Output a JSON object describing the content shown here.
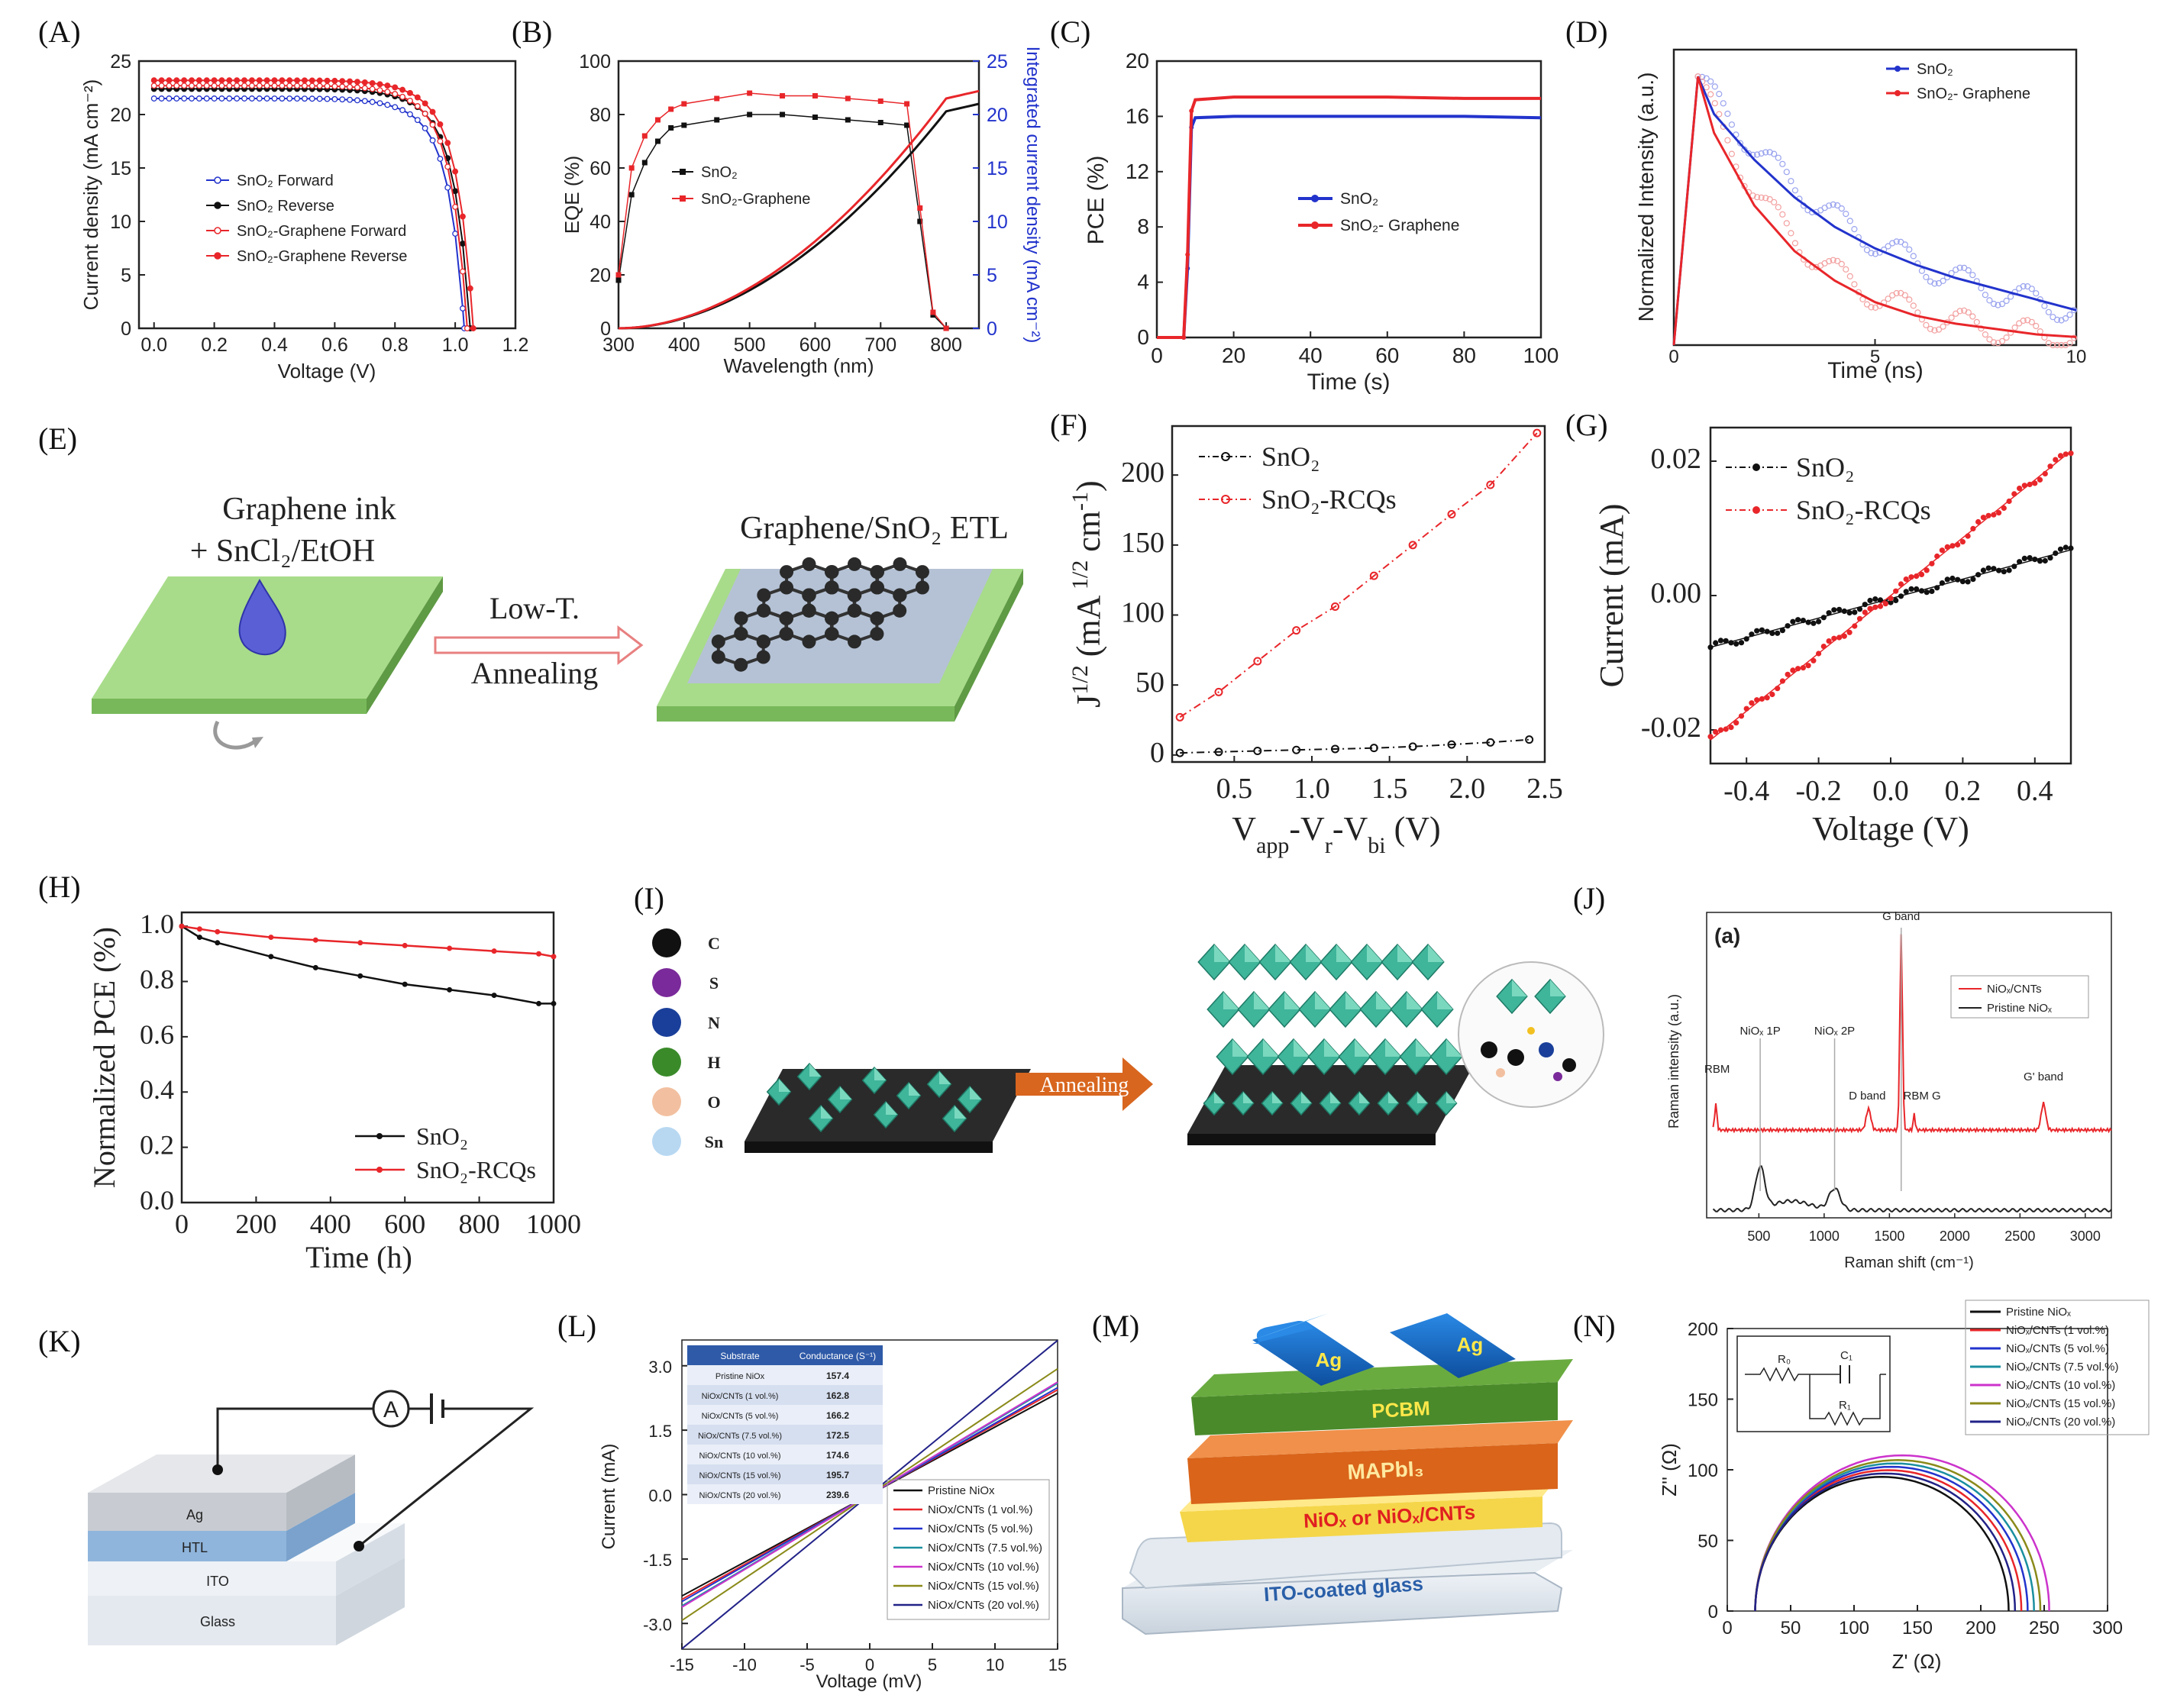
{
  "panel_labels": [
    "(A)",
    "(B)",
    "(C)",
    "(D)",
    "(E)",
    "(F)",
    "(G)",
    "(H)",
    "(I)",
    "(J)",
    "(K)",
    "(L)",
    "(M)",
    "(N)"
  ],
  "colors": {
    "sno2": "#111111",
    "graphene": "#e8262a",
    "blue": "#2233cc",
    "green": "#8ed47a",
    "pink": "#e8a0a0"
  },
  "chart_data": [
    {
      "panel": "A",
      "type": "line",
      "xlabel": "Voltage (V)",
      "ylabel": "Current density (mA cm⁻²)",
      "xlim": [
        -0.05,
        1.2
      ],
      "ylim": [
        0,
        25
      ],
      "xticks": [
        "0.0",
        "0.2",
        "0.4",
        "0.6",
        "0.8",
        "1.0",
        "1.2"
      ],
      "yticks": [
        "0",
        "5",
        "10",
        "15",
        "20",
        "25"
      ],
      "series": [
        {
          "name": "SnO₂ Forward",
          "jsc": 21.5,
          "voc": 1.03,
          "color": "#2233cc",
          "marker": "open-circle"
        },
        {
          "name": "SnO₂ Reverse",
          "jsc": 22.4,
          "voc": 1.05,
          "color": "#111111",
          "marker": "filled-circle"
        },
        {
          "name": "SnO₂-Graphene Forward",
          "jsc": 22.7,
          "voc": 1.04,
          "color": "#e8262a",
          "marker": "open-circle"
        },
        {
          "name": "SnO₂-Graphene Reverse",
          "jsc": 23.2,
          "voc": 1.06,
          "color": "#e8262a",
          "marker": "filled-circle"
        }
      ],
      "legend_placement": "center-left"
    },
    {
      "panel": "B",
      "type": "line",
      "xlabel": "Wavelength (nm)",
      "ylabel": "EQE (%)",
      "y2label": "Integrated current density (mA cm⁻²)",
      "xlim": [
        300,
        850
      ],
      "ylim": [
        0,
        100
      ],
      "y2lim": [
        0,
        25
      ],
      "xticks": [
        "300",
        "400",
        "500",
        "600",
        "700",
        "800"
      ],
      "yticks": [
        "0",
        "20",
        "40",
        "60",
        "80",
        "100"
      ],
      "y2ticks": [
        "0",
        "5",
        "10",
        "15",
        "20",
        "25"
      ],
      "series": [
        {
          "name": "SnO₂",
          "x": [
            300,
            320,
            340,
            360,
            380,
            400,
            450,
            500,
            550,
            600,
            650,
            700,
            740,
            760,
            780,
            800
          ],
          "values": [
            18,
            50,
            62,
            70,
            75,
            76,
            78,
            80,
            80,
            79,
            78,
            77,
            76,
            40,
            5,
            0
          ]
        },
        {
          "name": "SnO₂-Graphene",
          "x": [
            300,
            320,
            340,
            360,
            380,
            400,
            450,
            500,
            550,
            600,
            650,
            700,
            740,
            760,
            780,
            800
          ],
          "values": [
            20,
            60,
            72,
            78,
            82,
            84,
            86,
            88,
            87,
            87,
            86,
            85,
            84,
            45,
            6,
            0
          ]
        }
      ],
      "integrated": [
        {
          "name": "SnO₂",
          "x": [
            300,
            400,
            500,
            600,
            700,
            800,
            850
          ],
          "values": [
            0,
            0.8,
            4.5,
            9.6,
            15.1,
            20.3,
            21.0
          ]
        },
        {
          "name": "SnO₂-Graphene",
          "x": [
            300,
            400,
            500,
            600,
            700,
            800,
            850
          ],
          "values": [
            0,
            0.9,
            5.0,
            10.4,
            16.2,
            21.5,
            22.2
          ]
        }
      ],
      "legend_placement": "center-left"
    },
    {
      "panel": "C",
      "type": "line",
      "xlabel": "Time (s)",
      "ylabel": "PCE (%)",
      "xlim": [
        0,
        100
      ],
      "ylim": [
        0,
        20
      ],
      "xticks": [
        "0",
        "20",
        "40",
        "60",
        "80",
        "100"
      ],
      "yticks": [
        "0",
        "4",
        "8",
        "12",
        "16",
        "20"
      ],
      "series": [
        {
          "name": "SnO₂",
          "x": [
            0,
            7,
            8,
            9,
            10,
            20,
            40,
            60,
            80,
            100
          ],
          "values": [
            0,
            0,
            5,
            15.2,
            15.9,
            16.0,
            16.0,
            16.0,
            16.0,
            15.9
          ]
        },
        {
          "name": "SnO₂- Graphene",
          "x": [
            0,
            7,
            8,
            9,
            10,
            20,
            40,
            60,
            80,
            100
          ],
          "values": [
            0,
            0,
            6,
            16.4,
            17.2,
            17.4,
            17.4,
            17.4,
            17.3,
            17.3
          ]
        }
      ],
      "legend_placement": "center-right"
    },
    {
      "panel": "D",
      "type": "line",
      "xlabel": "Time (ns)",
      "ylabel": "Normalized Intensity (a.u.)",
      "xlim": [
        0,
        10
      ],
      "ylim": [
        0,
        1.1
      ],
      "xticks": [
        "0",
        "5",
        "10"
      ],
      "series": [
        {
          "name": "SnO₂",
          "x": [
            0,
            0.3,
            0.6,
            1,
            2,
            3,
            4,
            5,
            6,
            7,
            8,
            9,
            10
          ],
          "values": [
            0,
            0.5,
            1.0,
            0.86,
            0.69,
            0.55,
            0.44,
            0.36,
            0.3,
            0.25,
            0.21,
            0.17,
            0.13
          ]
        },
        {
          "name": "SnO₂- Graphene",
          "x": [
            0,
            0.3,
            0.6,
            1,
            2,
            3,
            4,
            5,
            6,
            7,
            8,
            9,
            10
          ],
          "values": [
            0,
            0.5,
            1.0,
            0.79,
            0.52,
            0.35,
            0.24,
            0.16,
            0.11,
            0.08,
            0.06,
            0.04,
            0.03
          ]
        }
      ],
      "legend_placement": "top-right"
    },
    {
      "panel": "F",
      "type": "line",
      "xlabel": "Vapp-Vr-Vbi (V)",
      "ylabel": "J1/2 (mA1/2 cm-1)",
      "xlim": [
        0.1,
        2.5
      ],
      "ylim": [
        -5,
        235
      ],
      "xticks": [
        "0.5",
        "1.0",
        "1.5",
        "2.0",
        "2.5"
      ],
      "yticks": [
        "0",
        "50",
        "100",
        "150",
        "200"
      ],
      "series": [
        {
          "name": "SnO₂",
          "x": [
            0.15,
            0.4,
            0.65,
            0.9,
            1.15,
            1.4,
            1.65,
            1.9,
            2.15,
            2.4
          ],
          "values": [
            1.5,
            2.2,
            2.9,
            3.6,
            4.3,
            5.0,
            6.0,
            7.5,
            9,
            11
          ]
        },
        {
          "name": "SnO₂-RCQs",
          "x": [
            0.15,
            0.4,
            0.65,
            0.9,
            1.15,
            1.4,
            1.65,
            1.9,
            2.15,
            2.45
          ],
          "values": [
            27,
            45,
            67,
            89,
            106,
            128,
            150,
            172,
            193,
            230
          ]
        }
      ],
      "legend_placement": "top-left"
    },
    {
      "panel": "G",
      "type": "scatter",
      "xlabel": "Voltage (V)",
      "ylabel": "Current (mA)",
      "xlim": [
        -0.5,
        0.5
      ],
      "ylim": [
        -0.025,
        0.025
      ],
      "xticks": [
        "-0.4",
        "-0.2",
        "0.0",
        "0.2",
        "0.4"
      ],
      "yticks": [
        "-0.02",
        "0.00",
        "0.02"
      ],
      "series": [
        {
          "name": "SnO₂",
          "x": [
            -0.5,
            0.5
          ],
          "values": [
            -0.0077,
            0.0068
          ]
        },
        {
          "name": "SnO₂-RCQs",
          "x": [
            -0.5,
            0.5
          ],
          "values": [
            -0.0215,
            0.0215
          ]
        }
      ],
      "legend_placement": "top-left"
    },
    {
      "panel": "H",
      "type": "line",
      "xlabel": "Time (h)",
      "ylabel": "Normalized PCE (%)",
      "xlim": [
        0,
        1000
      ],
      "ylim": [
        0,
        1.05
      ],
      "xticks": [
        "0",
        "200",
        "400",
        "600",
        "800",
        "1000"
      ],
      "yticks": [
        "0.0",
        "0.2",
        "0.4",
        "0.6",
        "0.8",
        "1.0"
      ],
      "series": [
        {
          "name": "SnO₂",
          "x": [
            0,
            48,
            96,
            240,
            360,
            480,
            600,
            720,
            840,
            960,
            1000
          ],
          "values": [
            1.0,
            0.96,
            0.94,
            0.89,
            0.85,
            0.82,
            0.79,
            0.77,
            0.75,
            0.72,
            0.72
          ]
        },
        {
          "name": "SnO₂-RCQs",
          "x": [
            0,
            48,
            96,
            240,
            360,
            480,
            600,
            720,
            840,
            960,
            1000
          ],
          "values": [
            1.0,
            0.99,
            0.98,
            0.96,
            0.95,
            0.94,
            0.93,
            0.92,
            0.91,
            0.9,
            0.89
          ]
        }
      ],
      "legend_placement": "bottom-right"
    },
    {
      "panel": "J",
      "type": "line",
      "panel_tag": "(a)",
      "xlabel": "Raman shift (cm⁻¹)",
      "ylabel": "Raman intensity (a.u.)",
      "xlim": [
        100,
        3200
      ],
      "xticks": [
        "500",
        "1000",
        "1500",
        "2000",
        "2500",
        "3000"
      ],
      "series": [
        {
          "name": "NiOₓ/CNTs"
        },
        {
          "name": "Pristine NiOₓ"
        }
      ],
      "annotations": [
        "G band",
        "NiOₓ 1P",
        "NiOₓ 2P",
        "RBM",
        "D band",
        "RBM G",
        "G' band"
      ],
      "legend_placement": "top-right"
    },
    {
      "panel": "L",
      "type": "line",
      "xlabel": "Voltage (mV)",
      "ylabel": "Current (mA)",
      "xlim": [
        -15,
        15
      ],
      "ylim": [
        -3.6,
        3.6
      ],
      "xticks": [
        "-15",
        "-10",
        "-5",
        "0",
        "5",
        "10",
        "15"
      ],
      "yticks": [
        "-3.0",
        "-1.5",
        "0.0",
        "1.5",
        "3.0"
      ],
      "series": [
        {
          "name": "Pristine NiOx",
          "values": [
            -2.36,
            2.36
          ],
          "color": "#111111"
        },
        {
          "name": "NiOx/CNTs (1 vol.%)",
          "values": [
            -2.44,
            2.44
          ],
          "color": "#e8262a"
        },
        {
          "name": "NiOx/CNTs (5 vol.%)",
          "values": [
            -2.49,
            2.49
          ],
          "color": "#2233cc"
        },
        {
          "name": "NiOx/CNTs (7.5 vol.%)",
          "values": [
            -2.59,
            2.59
          ],
          "color": "#1a8fa0"
        },
        {
          "name": "NiOx/CNTs (10 vol.%)",
          "values": [
            -2.62,
            2.62
          ],
          "color": "#cc33cc"
        },
        {
          "name": "NiOx/CNTs (15 vol.%)",
          "values": [
            -2.93,
            2.93
          ],
          "color": "#8a8a1a"
        },
        {
          "name": "NiOx/CNTs (20 vol.%)",
          "values": [
            -3.59,
            3.59
          ],
          "color": "#222288"
        }
      ],
      "table": {
        "headers": [
          "Substrate",
          "Conductance (S⁻¹)"
        ],
        "rows": [
          [
            "Pristine NiOx",
            "157.4"
          ],
          [
            "NiOx/CNTs (1 vol.%)",
            "162.8"
          ],
          [
            "NiOx/CNTs (5 vol.%)",
            "166.2"
          ],
          [
            "NiOx/CNTs (7.5 vol.%)",
            "172.5"
          ],
          [
            "NiOx/CNTs (10 vol.%)",
            "174.6"
          ],
          [
            "NiOx/CNTs (15 vol.%)",
            "195.7"
          ],
          [
            "NiOx/CNTs (20 vol.%)",
            "239.6"
          ]
        ]
      },
      "legend_placement": "bottom-right"
    },
    {
      "panel": "N",
      "type": "line",
      "xlabel": "Z' (Ω)",
      "ylabel": "Z'' (Ω)",
      "xlim": [
        0,
        300
      ],
      "ylim": [
        0,
        200
      ],
      "xticks": [
        "0",
        "50",
        "100",
        "150",
        "200",
        "250",
        "300"
      ],
      "yticks": [
        "0",
        "50",
        "100",
        "150",
        "200"
      ],
      "series": [
        {
          "name": "Pristine NiOₓ",
          "r0": 22,
          "r1": 200,
          "color": "#111111"
        },
        {
          "name": "NiOₓ/CNTs (1 vol.%)",
          "r0": 22,
          "r1": 210,
          "color": "#e8262a"
        },
        {
          "name": "NiOₓ/CNTs (5 vol.%)",
          "r0": 22,
          "r1": 215,
          "color": "#2233cc"
        },
        {
          "name": "NiOₓ/CNTs (7.5 vol.%)",
          "r0": 22,
          "r1": 220,
          "color": "#1a8fa0"
        },
        {
          "name": "NiOₓ/CNTs (10 vol.%)",
          "r0": 22,
          "r1": 232,
          "color": "#cc33cc"
        },
        {
          "name": "NiOₓ/CNTs (15 vol.%)",
          "r0": 22,
          "r1": 225,
          "color": "#8a8a1a"
        },
        {
          "name": "NiOₓ/CNTs (20 vol.%)",
          "r0": 22,
          "r1": 205,
          "color": "#222288"
        }
      ],
      "inset_labels": [
        "R₀",
        "C₁",
        "R₁"
      ],
      "legend_placement": "top-right"
    }
  ],
  "schematic_E": {
    "ink_label_1": "Graphene  ink",
    "ink_label_2": "+ SnCl₂/EtOH",
    "arrow_top": "Low-T.",
    "arrow_bottom": "Annealing",
    "product_label": "Graphene/SnO₂ ETL"
  },
  "schematic_I": {
    "elements": [
      "C",
      "S",
      "N",
      "H",
      "O",
      "Sn"
    ],
    "element_colors": [
      "#111111",
      "#7a2a9a",
      "#1a3f9a",
      "#3a8a2a",
      "#f2c0a0",
      "#b8d8f2"
    ],
    "arrow_label": "Annealing"
  },
  "schematic_K": {
    "meter": "A",
    "layers": [
      "Ag",
      "HTL",
      "ITO",
      "Glass"
    ]
  },
  "schematic_M": {
    "contact_left": "Ag",
    "contact_right": "Ag",
    "layers": [
      "PCBM",
      "MAPbI₃",
      "NiOₓ  or  NiOₓ/CNTs",
      "ITO-coated glass"
    ]
  }
}
